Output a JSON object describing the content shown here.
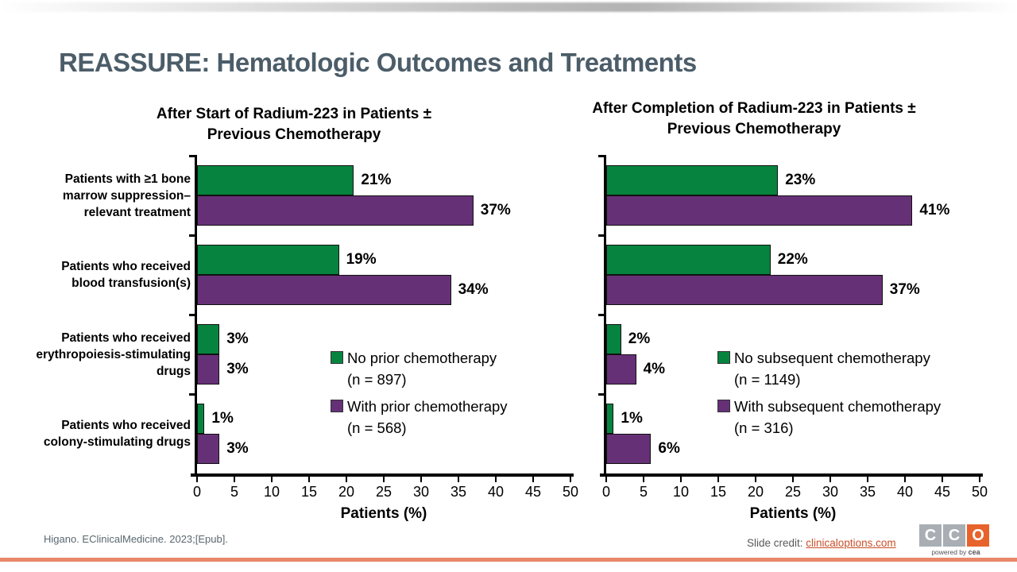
{
  "slide": {
    "title": "REASSURE: Hematologic Outcomes and Treatments",
    "footer_reference": "Higano. EClinicalMedicine. 2023;[Epub].",
    "credit_label": "Slide credit: ",
    "credit_link": "clinicaloptions.com",
    "logo": {
      "tiles": [
        "C",
        "C",
        "O"
      ],
      "tagline_prefix": "powered by ",
      "tagline_brand": "cea"
    }
  },
  "colors": {
    "green": "#06843f",
    "purple": "#663077",
    "title_text": "#4c5d69",
    "credit_orange": "#c94f28",
    "logo_gray": "#a8aeb4",
    "logo_orange": "#e8632c",
    "bottom_bar": "#e8876a"
  },
  "chart_data": [
    {
      "type": "bar",
      "orientation": "horizontal",
      "title": "After Start of Radium-223 in Patients ± Previous Chemotherapy",
      "categories": [
        "Patients with ≥1 bone marrow suppression–relevant treatment",
        "Patients who received blood transfusion(s)",
        "Patients who received erythropoiesis-stimulating drugs",
        "Patients who received colony-stimulating drugs"
      ],
      "series": [
        {
          "name": "No prior chemotherapy",
          "n_label": "(n = 897)",
          "color_key": "green",
          "values": [
            21,
            19,
            3,
            1
          ],
          "labels": [
            "21%",
            "19%",
            "3%",
            "1%"
          ]
        },
        {
          "name": "With prior chemotherapy",
          "n_label": "(n = 568)",
          "color_key": "purple",
          "values": [
            37,
            34,
            3,
            3
          ],
          "labels": [
            "37%",
            "34%",
            "3%",
            "3%"
          ]
        }
      ],
      "xlabel": "Patients (%)",
      "xlim": [
        0,
        50
      ],
      "xticks": [
        0,
        5,
        10,
        15,
        20,
        25,
        30,
        35,
        40,
        45,
        50
      ],
      "grid": false,
      "legend_position": "inside-right"
    },
    {
      "type": "bar",
      "orientation": "horizontal",
      "title": "After Completion of Radium-223 in Patients ± Previous Chemotherapy",
      "categories": [
        "Patients with ≥1 bone marrow suppression–relevant treatment",
        "Patients who received blood transfusion(s)",
        "Patients who received erythropoiesis-stimulating drugs",
        "Patients who received colony-stimulating drugs"
      ],
      "series": [
        {
          "name": "No subsequent chemotherapy",
          "n_label": "(n = 1149)",
          "color_key": "green",
          "values": [
            23,
            22,
            2,
            1
          ],
          "labels": [
            "23%",
            "22%",
            "2%",
            "1%"
          ]
        },
        {
          "name": "With subsequent chemotherapy",
          "n_label": "(n = 316)",
          "color_key": "purple",
          "values": [
            41,
            37,
            4,
            6
          ],
          "labels": [
            "41%",
            "37%",
            "4%",
            "6%"
          ]
        }
      ],
      "xlabel": "Patients (%)",
      "xlim": [
        0,
        50
      ],
      "xticks": [
        0,
        5,
        10,
        15,
        20,
        25,
        30,
        35,
        40,
        45,
        50
      ],
      "grid": false,
      "legend_position": "inside-right"
    }
  ]
}
